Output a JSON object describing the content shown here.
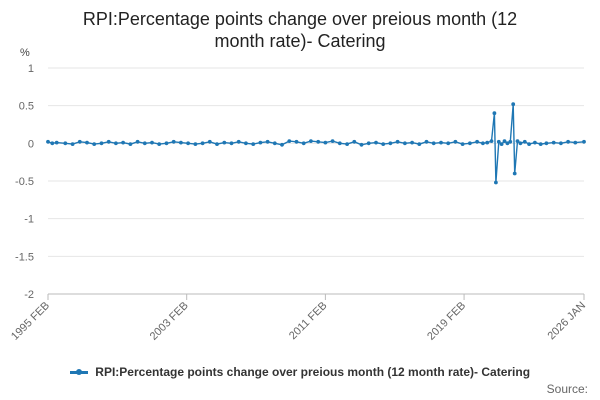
{
  "chart_data": {
    "type": "line",
    "title": "RPI:Percentage points change over preious month (12 month rate)- Catering",
    "title_lines": [
      "RPI:Percentage points change over preious month (12",
      "month rate)- Catering"
    ],
    "ylabel": "%",
    "xlabel": "",
    "ylim": [
      -2,
      1
    ],
    "yticks": [
      1,
      0.5,
      0,
      -0.5,
      -1,
      -1.5,
      -2
    ],
    "ytick_labels": [
      "1",
      "0.5",
      "0",
      "-0.5",
      "-1",
      "-1.5",
      "-2"
    ],
    "xlim": [
      "1995-02",
      "2026-01"
    ],
    "xticks": [
      {
        "date": "1995-02",
        "label": "1995 FEB"
      },
      {
        "date": "2003-02",
        "label": "2003 FEB"
      },
      {
        "date": "2011-02",
        "label": "2011 FEB"
      },
      {
        "date": "2019-02",
        "label": "2019 FEB"
      },
      {
        "date": "2026-01",
        "label": "2026 JAN"
      }
    ],
    "grid": true,
    "legend_position": "bottom",
    "series": [
      {
        "name": "RPI:Percentage points change over preious month (12 month rate)- Catering",
        "color": "#1f77b4",
        "points": [
          [
            "1995-02",
            0.02
          ],
          [
            "1995-05",
            0.0
          ],
          [
            "1995-08",
            0.01
          ],
          [
            "1996-02",
            0.0
          ],
          [
            "1996-07",
            -0.01
          ],
          [
            "1996-12",
            0.02
          ],
          [
            "1997-05",
            0.01
          ],
          [
            "1997-10",
            -0.01
          ],
          [
            "1998-03",
            0.0
          ],
          [
            "1998-08",
            0.02
          ],
          [
            "1999-01",
            0.0
          ],
          [
            "1999-06",
            0.01
          ],
          [
            "1999-11",
            -0.01
          ],
          [
            "2000-04",
            0.02
          ],
          [
            "2000-09",
            0.0
          ],
          [
            "2001-02",
            0.01
          ],
          [
            "2001-07",
            -0.01
          ],
          [
            "2001-12",
            0.0
          ],
          [
            "2002-05",
            0.02
          ],
          [
            "2002-10",
            0.01
          ],
          [
            "2003-03",
            0.0
          ],
          [
            "2003-08",
            -0.01
          ],
          [
            "2004-01",
            0.0
          ],
          [
            "2004-06",
            0.02
          ],
          [
            "2004-11",
            -0.01
          ],
          [
            "2005-04",
            0.01
          ],
          [
            "2005-09",
            0.0
          ],
          [
            "2006-02",
            0.02
          ],
          [
            "2006-07",
            0.0
          ],
          [
            "2006-12",
            -0.01
          ],
          [
            "2007-05",
            0.01
          ],
          [
            "2007-10",
            0.02
          ],
          [
            "2008-03",
            0.0
          ],
          [
            "2008-08",
            -0.02
          ],
          [
            "2009-01",
            0.03
          ],
          [
            "2009-06",
            0.02
          ],
          [
            "2009-11",
            0.0
          ],
          [
            "2010-04",
            0.03
          ],
          [
            "2010-09",
            0.02
          ],
          [
            "2011-02",
            0.01
          ],
          [
            "2011-07",
            0.03
          ],
          [
            "2011-12",
            0.0
          ],
          [
            "2012-05",
            -0.01
          ],
          [
            "2012-10",
            0.02
          ],
          [
            "2013-03",
            -0.02
          ],
          [
            "2013-08",
            0.0
          ],
          [
            "2014-01",
            0.01
          ],
          [
            "2014-06",
            -0.01
          ],
          [
            "2014-11",
            0.0
          ],
          [
            "2015-04",
            0.02
          ],
          [
            "2015-09",
            0.0
          ],
          [
            "2016-02",
            0.01
          ],
          [
            "2016-07",
            -0.01
          ],
          [
            "2016-12",
            0.02
          ],
          [
            "2017-05",
            0.0
          ],
          [
            "2017-10",
            0.01
          ],
          [
            "2018-03",
            0.0
          ],
          [
            "2018-08",
            0.02
          ],
          [
            "2019-01",
            -0.01
          ],
          [
            "2019-06",
            0.0
          ],
          [
            "2019-11",
            0.02
          ],
          [
            "2020-03",
            0.0
          ],
          [
            "2020-06",
            0.01
          ],
          [
            "2020-09",
            0.03
          ],
          [
            "2020-11",
            0.4
          ],
          [
            "2020-12",
            -0.52
          ],
          [
            "2021-02",
            0.02
          ],
          [
            "2021-04",
            -0.01
          ],
          [
            "2021-06",
            0.03
          ],
          [
            "2021-08",
            0.0
          ],
          [
            "2021-10",
            0.02
          ],
          [
            "2021-12",
            0.52
          ],
          [
            "2022-01",
            -0.4
          ],
          [
            "2022-03",
            0.03
          ],
          [
            "2022-05",
            0.0
          ],
          [
            "2022-08",
            0.02
          ],
          [
            "2022-11",
            -0.01
          ],
          [
            "2023-03",
            0.01
          ],
          [
            "2023-07",
            -0.01
          ],
          [
            "2023-11",
            0.0
          ],
          [
            "2024-04",
            0.01
          ],
          [
            "2024-09",
            0.0
          ],
          [
            "2025-02",
            0.02
          ],
          [
            "2025-07",
            0.01
          ],
          [
            "2026-01",
            0.02
          ]
        ]
      }
    ]
  },
  "footer": {
    "source_label": "Source:"
  }
}
